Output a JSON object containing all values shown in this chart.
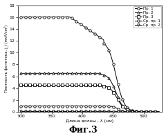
{
  "xlabel": "Длина волны , λ (нм)",
  "ylabel": "Плотность фототока, j_i (мкА/см²)",
  "caption": "Фиг.3",
  "xlim": [
    295,
    530
  ],
  "ylim": [
    0,
    18
  ],
  "yticks": [
    0,
    2,
    4,
    6,
    8,
    10,
    12,
    14,
    16,
    18
  ],
  "xticks": [
    300,
    350,
    400,
    450,
    500
  ],
  "legend": [
    "Пр. 1",
    "Пр. 2",
    "Пр. 3",
    "Ср. пр. 1",
    "Ср. пр. 2"
  ],
  "background_color": "#f5f5f5"
}
